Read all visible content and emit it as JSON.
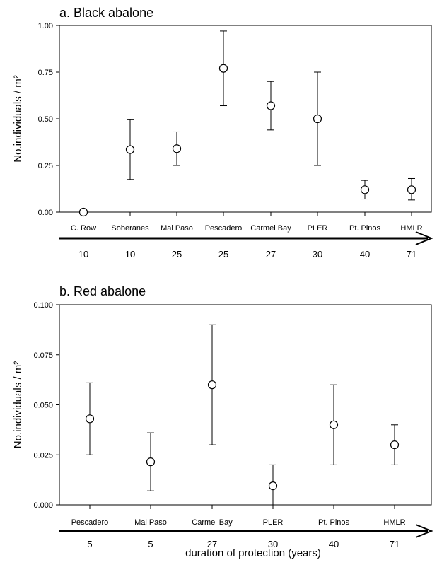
{
  "xlabel": "duration of protection (years)",
  "chart_data": [
    {
      "type": "scatter",
      "title": "a. Black abalone",
      "ylabel": "No.individuals / m²",
      "ylim": [
        0,
        1.0
      ],
      "yticks": [
        "0.00",
        "0.25",
        "0.50",
        "0.75",
        "1.00"
      ],
      "categories": [
        "C. Row",
        "Soberanes",
        "Mal Paso",
        "Pescadero",
        "Carmel Bay",
        "PLER",
        "Pt. Pinos",
        "HMLR"
      ],
      "duration_years": [
        "10",
        "10",
        "25",
        "25",
        "27",
        "30",
        "40",
        "71"
      ],
      "series": [
        {
          "values": [
            0.0,
            0.335,
            0.34,
            0.77,
            0.57,
            0.5,
            0.12,
            0.12
          ],
          "error_low": [
            null,
            0.175,
            0.25,
            0.57,
            0.44,
            0.25,
            0.07,
            0.065
          ],
          "error_high": [
            null,
            0.495,
            0.43,
            0.97,
            0.7,
            0.75,
            0.17,
            0.18
          ]
        }
      ],
      "grid": false
    },
    {
      "type": "scatter",
      "title": "b. Red abalone",
      "ylabel": "No.individuals / m²",
      "ylim": [
        0,
        0.1
      ],
      "yticks": [
        "0.000",
        "0.025",
        "0.050",
        "0.075",
        "0.100"
      ],
      "categories": [
        "Pescadero",
        "Mal Paso",
        "Carmel Bay",
        "PLER",
        "Pt. Pinos",
        "HMLR"
      ],
      "duration_years": [
        "5",
        "5",
        "27",
        "30",
        "40",
        "71"
      ],
      "series": [
        {
          "values": [
            0.043,
            0.0215,
            0.06,
            0.0095,
            0.04,
            0.03
          ],
          "error_low": [
            0.025,
            0.007,
            0.03,
            0.0,
            0.02,
            0.02
          ],
          "error_high": [
            0.061,
            0.036,
            0.09,
            0.02,
            0.06,
            0.04
          ]
        }
      ],
      "grid": false
    }
  ]
}
